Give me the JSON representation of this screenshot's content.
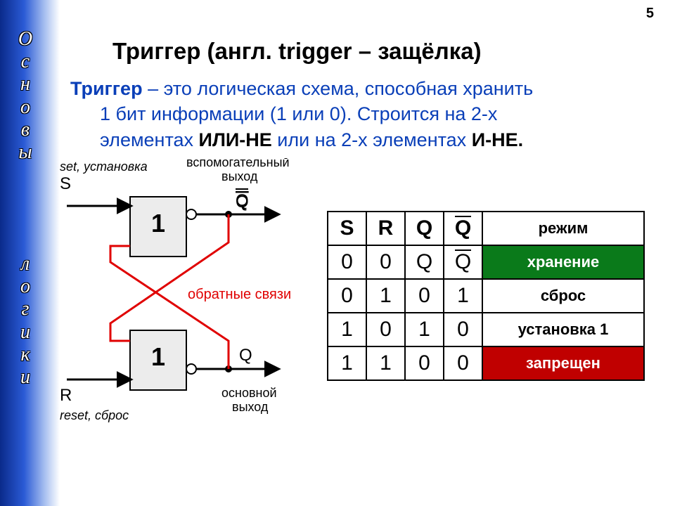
{
  "page_number": "5",
  "sidebar": {
    "word1": "Основы",
    "word2": "логики",
    "top1": 40,
    "top2": 360
  },
  "title": "Триггер (англ. trigger – защёлка)",
  "description": {
    "term": "Триггер",
    "line1_rest": " – это логическая схема, способная хранить",
    "line2": "1 бит информации (1 или 0). Строится на 2-х",
    "line3_a": "элементах ",
    "ili_ne": "ИЛИ-НЕ",
    "line3_b": " или на 2-х элементах ",
    "i_ne": "И-НЕ."
  },
  "diagram": {
    "labels": {
      "set": "set, установка",
      "S": "S",
      "R": "R",
      "reset": "reset, сброс",
      "aux_out": "вспомогательный\nвыход",
      "main_out": "основной\nвыход",
      "feedback": "обратные связи",
      "Q": "Q",
      "Qbar": "Q",
      "gate": "1"
    },
    "colors": {
      "gate_fill": "#ececec",
      "gate_stroke": "#000000",
      "arrow": "#000000",
      "feedback_wire": "#e00000",
      "feedback_text": "#e00000",
      "bubble_fill": "#ffffff"
    }
  },
  "table": {
    "headers": {
      "S": "S",
      "R": "R",
      "Q": "Q",
      "Qbar": "Q",
      "mode": "режим"
    },
    "rows": [
      {
        "S": "0",
        "R": "0",
        "Q": "Q",
        "Qbar": "Q",
        "Qbar_overline": true,
        "mode": "хранение",
        "mode_class": "mode-store"
      },
      {
        "S": "0",
        "R": "1",
        "Q": "0",
        "Qbar": "1",
        "Qbar_overline": false,
        "mode": "сброс",
        "mode_class": ""
      },
      {
        "S": "1",
        "R": "0",
        "Q": "1",
        "Qbar": "0",
        "Qbar_overline": false,
        "mode": "установка 1",
        "mode_class": ""
      },
      {
        "S": "1",
        "R": "1",
        "Q": "0",
        "Qbar": "0",
        "Qbar_overline": false,
        "mode": "запрещен",
        "mode_class": "mode-forbid"
      }
    ]
  }
}
